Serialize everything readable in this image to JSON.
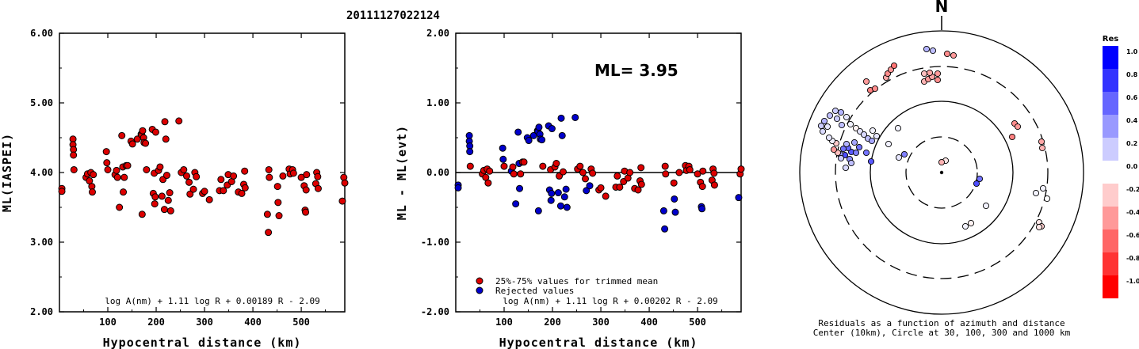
{
  "title": "20111127022124",
  "colors": {
    "accepted": "#dd0000",
    "rejected": "#0000cc"
  },
  "chart_data": [
    {
      "type": "scatter",
      "xlabel": "Hypocentral distance (km)",
      "ylabel": "ML(IASPEI)",
      "xlim": [
        0,
        590
      ],
      "ylim": [
        2.0,
        6.0
      ],
      "xticks": [
        "100",
        "200",
        "300",
        "400",
        "500"
      ],
      "yticks": [
        "2.00",
        "3.00",
        "4.00",
        "5.00",
        "6.00"
      ],
      "formula": "log A(nm) + 1.11 log R + 0.00189 R - 2.09",
      "points": [
        [
          5,
          3.77
        ],
        [
          5,
          3.73
        ],
        [
          28,
          4.48
        ],
        [
          28,
          4.4
        ],
        [
          29,
          4.33
        ],
        [
          29,
          4.25
        ],
        [
          30,
          4.04
        ],
        [
          55,
          3.93
        ],
        [
          58,
          3.98
        ],
        [
          62,
          3.88
        ],
        [
          65,
          4.0
        ],
        [
          67,
          3.8
        ],
        [
          68,
          3.72
        ],
        [
          70,
          3.97
        ],
        [
          97,
          4.3
        ],
        [
          98,
          4.14
        ],
        [
          100,
          4.04
        ],
        [
          115,
          3.97
        ],
        [
          118,
          4.03
        ],
        [
          120,
          3.93
        ],
        [
          124,
          3.5
        ],
        [
          129,
          4.53
        ],
        [
          131,
          4.08
        ],
        [
          132,
          3.72
        ],
        [
          134,
          3.93
        ],
        [
          138,
          4.1
        ],
        [
          141,
          4.1
        ],
        [
          148,
          4.45
        ],
        [
          151,
          4.41
        ],
        [
          161,
          4.48
        ],
        [
          169,
          4.55
        ],
        [
          170,
          4.54
        ],
        [
          171,
          3.4
        ],
        [
          172,
          4.6
        ],
        [
          174,
          4.5
        ],
        [
          175,
          4.43
        ],
        [
          178,
          4.42
        ],
        [
          180,
          4.04
        ],
        [
          192,
          4.62
        ],
        [
          194,
          3.7
        ],
        [
          196,
          3.99
        ],
        [
          197,
          3.55
        ],
        [
          198,
          3.65
        ],
        [
          199,
          4.58
        ],
        [
          205,
          4.03
        ],
        [
          208,
          4.08
        ],
        [
          212,
          3.66
        ],
        [
          214,
          3.9
        ],
        [
          217,
          3.47
        ],
        [
          218,
          4.73
        ],
        [
          220,
          4.48
        ],
        [
          222,
          3.96
        ],
        [
          225,
          3.6
        ],
        [
          228,
          3.71
        ],
        [
          230,
          3.45
        ],
        [
          247,
          4.74
        ],
        [
          252,
          4.0
        ],
        [
          257,
          4.04
        ],
        [
          263,
          3.95
        ],
        [
          268,
          3.86
        ],
        [
          270,
          3.69
        ],
        [
          277,
          3.76
        ],
        [
          280,
          4.0
        ],
        [
          283,
          3.94
        ],
        [
          296,
          3.7
        ],
        [
          300,
          3.73
        ],
        [
          310,
          3.61
        ],
        [
          331,
          3.74
        ],
        [
          334,
          3.9
        ],
        [
          339,
          3.74
        ],
        [
          347,
          3.82
        ],
        [
          349,
          3.97
        ],
        [
          356,
          3.87
        ],
        [
          360,
          3.95
        ],
        [
          370,
          3.72
        ],
        [
          377,
          3.7
        ],
        [
          381,
          3.83
        ],
        [
          383,
          4.02
        ],
        [
          384,
          3.78
        ],
        [
          430,
          3.4
        ],
        [
          432,
          3.14
        ],
        [
          433,
          4.04
        ],
        [
          434,
          3.93
        ],
        [
          451,
          3.8
        ],
        [
          452,
          3.57
        ],
        [
          454,
          3.38
        ],
        [
          462,
          3.95
        ],
        [
          475,
          4.05
        ],
        [
          477,
          3.98
        ],
        [
          482,
          4.04
        ],
        [
          484,
          3.99
        ],
        [
          500,
          3.93
        ],
        [
          506,
          3.81
        ],
        [
          508,
          3.46
        ],
        [
          509,
          3.43
        ],
        [
          510,
          3.75
        ],
        [
          511,
          3.97
        ],
        [
          530,
          3.84
        ],
        [
          532,
          4.0
        ],
        [
          534,
          3.94
        ],
        [
          535,
          3.77
        ],
        [
          585,
          3.59
        ],
        [
          588,
          3.93
        ],
        [
          590,
          3.85
        ]
      ]
    },
    {
      "type": "scatter",
      "xlabel": "Hypocentral distance (km)",
      "ylabel": "ML - ML(evt)",
      "xlim": [
        0,
        590
      ],
      "ylim": [
        -2.0,
        2.0
      ],
      "xticks": [
        "100",
        "200",
        "300",
        "400",
        "500"
      ],
      "yticks": [
        "-2.00",
        "-1.00",
        "0.00",
        "1.00",
        "2.00"
      ],
      "annotation": "ML= 3.95",
      "formula": "log A(nm) + 1.11 log R + 0.00202 R - 2.09",
      "legend": [
        {
          "label": "25%-75% values for trimmed mean",
          "color": "#dd0000"
        },
        {
          "label": "Rejected values",
          "color": "#0000cc"
        }
      ],
      "accepted": [
        [
          30,
          0.09
        ],
        [
          55,
          -0.02
        ],
        [
          58,
          0.03
        ],
        [
          62,
          -0.07
        ],
        [
          65,
          0.05
        ],
        [
          67,
          -0.15
        ],
        [
          70,
          0.02
        ],
        [
          100,
          0.09
        ],
        [
          118,
          0.08
        ],
        [
          120,
          -0.02
        ],
        [
          134,
          -0.02
        ],
        [
          138,
          0.15
        ],
        [
          141,
          0.15
        ],
        [
          180,
          0.09
        ],
        [
          196,
          0.04
        ],
        [
          205,
          0.08
        ],
        [
          208,
          0.13
        ],
        [
          214,
          -0.05
        ],
        [
          222,
          0.01
        ],
        [
          252,
          0.05
        ],
        [
          257,
          0.09
        ],
        [
          263,
          0.0
        ],
        [
          268,
          -0.09
        ],
        [
          280,
          0.05
        ],
        [
          283,
          -0.01
        ],
        [
          296,
          -0.25
        ],
        [
          300,
          -0.22
        ],
        [
          310,
          -0.34
        ],
        [
          331,
          -0.21
        ],
        [
          334,
          -0.05
        ],
        [
          339,
          -0.21
        ],
        [
          347,
          -0.13
        ],
        [
          349,
          0.02
        ],
        [
          356,
          -0.08
        ],
        [
          360,
          0.0
        ],
        [
          370,
          -0.23
        ],
        [
          377,
          -0.25
        ],
        [
          381,
          -0.12
        ],
        [
          383,
          0.07
        ],
        [
          384,
          -0.17
        ],
        [
          433,
          0.09
        ],
        [
          434,
          -0.02
        ],
        [
          451,
          -0.15
        ],
        [
          462,
          0.0
        ],
        [
          475,
          0.1
        ],
        [
          477,
          0.03
        ],
        [
          482,
          0.09
        ],
        [
          484,
          0.04
        ],
        [
          500,
          -0.02
        ],
        [
          506,
          -0.14
        ],
        [
          510,
          -0.2
        ],
        [
          511,
          0.02
        ],
        [
          530,
          -0.11
        ],
        [
          532,
          0.05
        ],
        [
          534,
          -0.01
        ],
        [
          535,
          -0.18
        ],
        [
          588,
          -0.02
        ],
        [
          590,
          0.05
        ]
      ],
      "rejected": [
        [
          5,
          -0.18
        ],
        [
          5,
          -0.22
        ],
        [
          28,
          0.53
        ],
        [
          28,
          0.45
        ],
        [
          29,
          0.38
        ],
        [
          29,
          0.3
        ],
        [
          97,
          0.35
        ],
        [
          98,
          0.19
        ],
        [
          115,
          0.02
        ],
        [
          124,
          -0.45
        ],
        [
          129,
          0.58
        ],
        [
          131,
          0.13
        ],
        [
          132,
          -0.23
        ],
        [
          148,
          0.5
        ],
        [
          151,
          0.46
        ],
        [
          161,
          0.53
        ],
        [
          169,
          0.6
        ],
        [
          170,
          0.59
        ],
        [
          171,
          -0.55
        ],
        [
          172,
          0.65
        ],
        [
          174,
          0.55
        ],
        [
          175,
          0.48
        ],
        [
          178,
          0.47
        ],
        [
          192,
          0.67
        ],
        [
          194,
          -0.25
        ],
        [
          197,
          -0.4
        ],
        [
          198,
          -0.3
        ],
        [
          199,
          0.63
        ],
        [
          212,
          -0.29
        ],
        [
          217,
          -0.48
        ],
        [
          218,
          0.78
        ],
        [
          220,
          0.53
        ],
        [
          225,
          -0.35
        ],
        [
          228,
          -0.24
        ],
        [
          230,
          -0.5
        ],
        [
          247,
          0.79
        ],
        [
          270,
          -0.26
        ],
        [
          277,
          -0.19
        ],
        [
          430,
          -0.55
        ],
        [
          432,
          -0.81
        ],
        [
          452,
          -0.38
        ],
        [
          454,
          -0.57
        ],
        [
          508,
          -0.49
        ],
        [
          509,
          -0.52
        ],
        [
          585,
          -0.36
        ]
      ]
    },
    {
      "type": "scatter",
      "subtype": "polar residual map",
      "north_label": "N",
      "caption_line1": "Residuals as a function of azimuth and distance",
      "caption_line2": "Center (10km), Circle at 30, 100, 300 and 1000 km",
      "colorbar": {
        "title": "Res",
        "labels": [
          "1.0",
          "0.8",
          "0.6",
          "0.4",
          "0.2",
          "0.0",
          "-0.2",
          "-0.4",
          "-0.6",
          "-0.8",
          "-1.0"
        ]
      },
      "stations": [
        [
          1193,
          203,
          -0.1
        ],
        [
          1188,
          205,
          -0.3
        ],
        [
          1236,
          226,
          0.55
        ],
        [
          1232,
          232,
          0.7
        ],
        [
          1244,
          260,
          0.05
        ],
        [
          1225,
          282,
          -0.05
        ],
        [
          1218,
          286,
          0.05
        ],
        [
          1141,
          195,
          0.5
        ],
        [
          1134,
          199,
          0.1
        ],
        [
          1133,
          162,
          0.05
        ],
        [
          1121,
          182,
          0.05
        ],
        [
          1099,
          204,
          0.65
        ],
        [
          1093,
          193,
          0.55
        ],
        [
          1078,
          180,
          0.35
        ],
        [
          1084,
          186,
          0.55
        ],
        [
          1074,
          192,
          0.65
        ],
        [
          1070,
          187,
          0.6
        ],
        [
          1066,
          196,
          0.7
        ],
        [
          1072,
          201,
          0.45
        ],
        [
          1080,
          193,
          0.5
        ],
        [
          1064,
          188,
          0.55
        ],
        [
          1060,
          195,
          0.4
        ],
        [
          1068,
          182,
          0.3
        ],
        [
          1074,
          206,
          0.25
        ],
        [
          1067,
          212,
          0.15
        ],
        [
          1061,
          200,
          0.2
        ],
        [
          1057,
          193,
          -0.25
        ],
        [
          1052,
          189,
          -0.4
        ],
        [
          1055,
          181,
          -0.2
        ],
        [
          1050,
          178,
          0.05
        ],
        [
          1046,
          174,
          0.1
        ],
        [
          1038,
          166,
          0.15
        ],
        [
          1044,
          160,
          0.1
        ],
        [
          1036,
          159,
          0.2
        ],
        [
          1040,
          153,
          0.3
        ],
        [
          1047,
          146,
          0.25
        ],
        [
          1054,
          140,
          0.2
        ],
        [
          1061,
          142,
          0.3
        ],
        [
          1056,
          150,
          0.2
        ],
        [
          1062,
          158,
          0.25
        ],
        [
          1068,
          148,
          0.1
        ],
        [
          1073,
          157,
          0.05
        ],
        [
          1080,
          162,
          -0.05
        ],
        [
          1085,
          166,
          0.1
        ],
        [
          1090,
          170,
          0.15
        ],
        [
          1095,
          175,
          0.25
        ],
        [
          1100,
          178,
          0.35
        ],
        [
          1106,
          172,
          0.1
        ],
        [
          1101,
          165,
          0.05
        ],
        [
          1098,
          114,
          -0.5
        ],
        [
          1104,
          112,
          -0.45
        ],
        [
          1093,
          103,
          -0.4
        ],
        [
          1118,
          98,
          -0.35
        ],
        [
          1120,
          93,
          -0.45
        ],
        [
          1124,
          88,
          -0.4
        ],
        [
          1128,
          83,
          -0.55
        ],
        [
          1169,
          62,
          0.3
        ],
        [
          1177,
          64,
          0.25
        ],
        [
          1195,
          68,
          -0.45
        ],
        [
          1203,
          70,
          -0.4
        ],
        [
          1166,
          103,
          -0.3
        ],
        [
          1171,
          100,
          -0.4
        ],
        [
          1176,
          97,
          -0.35
        ],
        [
          1183,
          101,
          -0.45
        ],
        [
          1166,
          93,
          -0.25
        ],
        [
          1173,
          92,
          -0.35
        ],
        [
          1183,
          93,
          -0.4
        ],
        [
          1280,
          156,
          -0.45
        ],
        [
          1277,
          173,
          -0.5
        ],
        [
          1284,
          160,
          -0.4
        ],
        [
          1314,
          179,
          -0.35
        ],
        [
          1315,
          187,
          -0.3
        ],
        [
          1316,
          238,
          0.05
        ],
        [
          1307,
          244,
          0.05
        ],
        [
          1311,
          281,
          -0.1
        ],
        [
          1314,
          286,
          -0.2
        ],
        [
          1311,
          287,
          -0.1
        ],
        [
          1321,
          251,
          0.0
        ]
      ]
    }
  ]
}
